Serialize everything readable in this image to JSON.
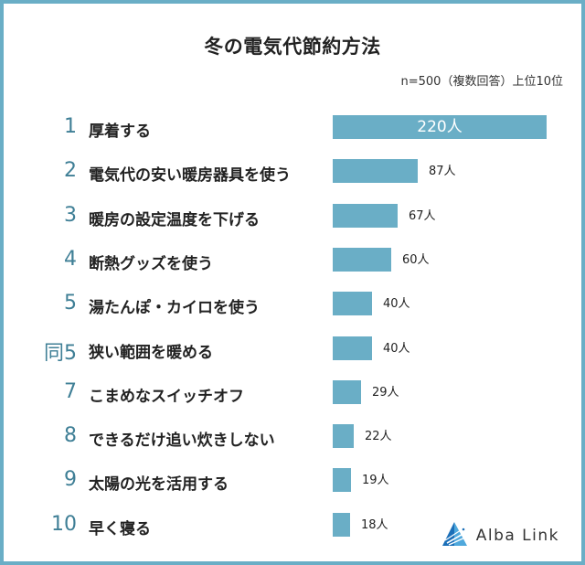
{
  "header": {
    "title": "冬の電気代節約方法",
    "subtitle": "n=500（複数回答）上位10位"
  },
  "colors": {
    "bar": "#6aaec6",
    "rank": "#3f7f96",
    "frame": "#6aaec6"
  },
  "logo": {
    "text": "Alba Link",
    "icon": "triangle-mountain-logo-icon"
  },
  "chart_data": {
    "type": "bar",
    "orientation": "horizontal",
    "title": "冬の電気代節約方法",
    "subtitle": "n=500（複数回答）上位10位",
    "xlabel": "",
    "ylabel": "",
    "unit": "人",
    "ranks": [
      "1",
      "2",
      "3",
      "4",
      "5",
      "同5",
      "7",
      "8",
      "9",
      "10"
    ],
    "categories": [
      "厚着する",
      "電気代の安い暖房器具を使う",
      "暖房の設定温度を下げる",
      "断熱グッズを使う",
      "湯たんぽ・カイロを使う",
      "狭い範囲を暖める",
      "こまめなスイッチオフ",
      "できるだけ追い炊きしない",
      "太陽の光を活用する",
      "早く寝る"
    ],
    "values": [
      220,
      87,
      67,
      60,
      40,
      40,
      29,
      22,
      19,
      18
    ],
    "value_labels": [
      "220人",
      "87人",
      "67人",
      "60人",
      "40人",
      "40人",
      "29人",
      "22人",
      "19人",
      "18人"
    ],
    "grid": false,
    "legend": "none"
  }
}
